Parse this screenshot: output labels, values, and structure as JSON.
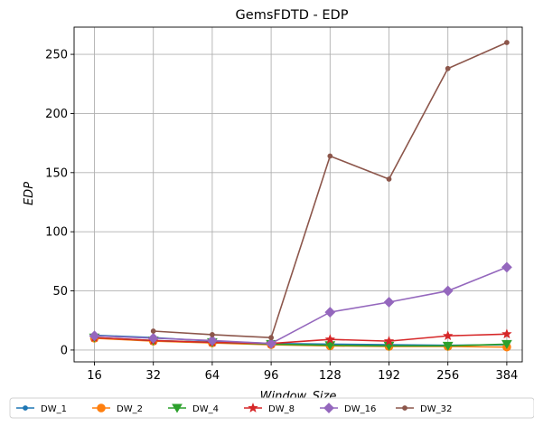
{
  "chart_data": {
    "type": "line",
    "title": "GemsFDTD - EDP",
    "xlabel": "Window_Size",
    "ylabel": "EDP",
    "categories": [
      "16",
      "32",
      "64",
      "96",
      "128",
      "192",
      "256",
      "384"
    ],
    "ylim": [
      -10,
      273
    ],
    "yticks": [
      0,
      50,
      100,
      150,
      200,
      250
    ],
    "grid": true,
    "legend_position": "bottom",
    "series": [
      {
        "name": "DW_1",
        "color": "#1f77b4",
        "marker": "point",
        "values": [
          12.5,
          10.5,
          7.5,
          5.5,
          5.0,
          4.5,
          4.0,
          4.5
        ]
      },
      {
        "name": "DW_2",
        "color": "#ff7f0e",
        "marker": "circle",
        "values": [
          10.0,
          7.5,
          6.0,
          4.5,
          3.5,
          3.0,
          3.0,
          2.5
        ]
      },
      {
        "name": "DW_4",
        "color": "#2ca02c",
        "marker": "triangle",
        "values": [
          10.5,
          8.0,
          6.5,
          5.0,
          4.0,
          3.5,
          3.5,
          5.0
        ]
      },
      {
        "name": "DW_8",
        "color": "#d62728",
        "marker": "star",
        "values": [
          10.5,
          8.0,
          6.5,
          5.5,
          9.0,
          7.5,
          12.0,
          13.5
        ]
      },
      {
        "name": "DW_16",
        "color": "#9467bd",
        "marker": "diamond",
        "values": [
          12.0,
          10.0,
          8.0,
          5.5,
          32.0,
          40.5,
          50.0,
          70.0
        ]
      },
      {
        "name": "DW_32",
        "color": "#8c564b",
        "marker": "point",
        "values": [
          null,
          16.0,
          13.0,
          10.5,
          164.0,
          144.5,
          238.0,
          260.0
        ]
      }
    ]
  }
}
